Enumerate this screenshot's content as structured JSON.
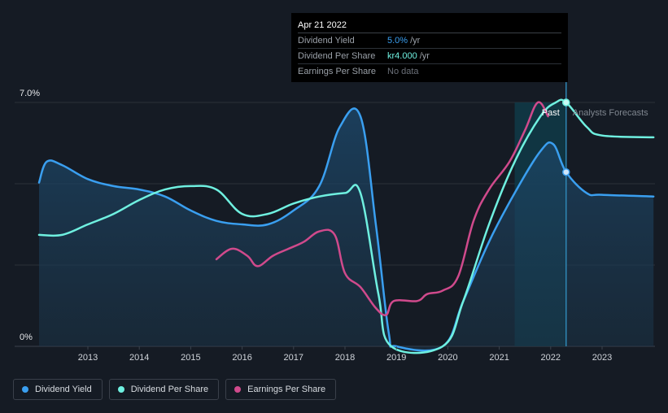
{
  "tooltip": {
    "date": "Apr 21 2022",
    "rows": [
      {
        "label": "Dividend Yield",
        "value": "5.0%",
        "unit": "/yr",
        "color": "#3a9ff0"
      },
      {
        "label": "Dividend Per Share",
        "value": "kr4.000",
        "unit": "/yr",
        "color": "#6ff0e0"
      },
      {
        "label": "Earnings Per Share",
        "value": "No data",
        "unit": "",
        "color": "#6b7079"
      }
    ]
  },
  "markers": {
    "past": "Past",
    "forecast": "Analysts Forecasts"
  },
  "legend": [
    {
      "label": "Dividend Yield",
      "color": "#3a9ff0"
    },
    {
      "label": "Dividend Per Share",
      "color": "#6ff0e0"
    },
    {
      "label": "Earnings Per Share",
      "color": "#d04a8c"
    }
  ],
  "chart_data": {
    "type": "line",
    "x_ticks": [
      "2013",
      "2014",
      "2015",
      "2016",
      "2017",
      "2018",
      "2019",
      "2020",
      "2021",
      "2022",
      "2023"
    ],
    "y_labels": [
      "7.0%",
      "0%"
    ],
    "xlim": [
      2012.0,
      2024.0
    ],
    "ylim": [
      0,
      7.0
    ],
    "highlight_x": 2022.3,
    "forecast_band": [
      2021.3,
      2022.3
    ],
    "series": [
      {
        "name": "Dividend Yield",
        "color": "#3a9ff0",
        "filled": true,
        "points": [
          [
            2012.0,
            4.7
          ],
          [
            2012.2,
            5.3
          ],
          [
            2012.5,
            5.2
          ],
          [
            2013.0,
            4.8
          ],
          [
            2013.5,
            4.6
          ],
          [
            2014.0,
            4.5
          ],
          [
            2014.5,
            4.3
          ],
          [
            2015.0,
            3.9
          ],
          [
            2015.5,
            3.6
          ],
          [
            2016.0,
            3.5
          ],
          [
            2016.5,
            3.5
          ],
          [
            2017.0,
            3.9
          ],
          [
            2017.5,
            4.6
          ],
          [
            2017.9,
            6.3
          ],
          [
            2018.3,
            6.6
          ],
          [
            2018.6,
            3.5
          ],
          [
            2018.85,
            0.4
          ],
          [
            2019.0,
            0.0
          ],
          [
            2019.9,
            0.0
          ],
          [
            2020.3,
            1.3
          ],
          [
            2020.8,
            3.0
          ],
          [
            2021.3,
            4.4
          ],
          [
            2021.8,
            5.6
          ],
          [
            2022.05,
            5.8
          ],
          [
            2022.3,
            5.0
          ],
          [
            2022.7,
            4.4
          ],
          [
            2023.0,
            4.35
          ],
          [
            2024.0,
            4.3
          ]
        ]
      },
      {
        "name": "Dividend Per Share",
        "color": "#6ff0e0",
        "filled": false,
        "points": [
          [
            2012.0,
            3.2
          ],
          [
            2012.5,
            3.2
          ],
          [
            2013.0,
            3.5
          ],
          [
            2013.5,
            3.8
          ],
          [
            2014.0,
            4.2
          ],
          [
            2014.5,
            4.5
          ],
          [
            2015.0,
            4.6
          ],
          [
            2015.5,
            4.5
          ],
          [
            2016.0,
            3.8
          ],
          [
            2016.5,
            3.8
          ],
          [
            2017.0,
            4.1
          ],
          [
            2017.5,
            4.3
          ],
          [
            2018.0,
            4.4
          ],
          [
            2018.3,
            4.4
          ],
          [
            2018.65,
            1.5
          ],
          [
            2018.9,
            0.0
          ],
          [
            2019.9,
            0.0
          ],
          [
            2020.3,
            1.3
          ],
          [
            2020.8,
            3.5
          ],
          [
            2021.3,
            5.3
          ],
          [
            2021.8,
            6.6
          ],
          [
            2022.1,
            7.0
          ],
          [
            2022.3,
            7.0
          ],
          [
            2022.7,
            6.3
          ],
          [
            2023.0,
            6.05
          ],
          [
            2024.0,
            6.0
          ]
        ]
      },
      {
        "name": "Earnings Per Share",
        "color": "#d04a8c",
        "filled": false,
        "points": [
          [
            2015.5,
            2.5
          ],
          [
            2015.8,
            2.8
          ],
          [
            2016.1,
            2.6
          ],
          [
            2016.3,
            2.3
          ],
          [
            2016.6,
            2.6
          ],
          [
            2016.9,
            2.8
          ],
          [
            2017.2,
            3.0
          ],
          [
            2017.5,
            3.3
          ],
          [
            2017.8,
            3.2
          ],
          [
            2018.0,
            2.1
          ],
          [
            2018.3,
            1.7
          ],
          [
            2018.6,
            1.1
          ],
          [
            2018.8,
            0.9
          ],
          [
            2018.95,
            1.3
          ],
          [
            2019.4,
            1.3
          ],
          [
            2019.6,
            1.5
          ],
          [
            2019.9,
            1.6
          ],
          [
            2020.2,
            2.0
          ],
          [
            2020.5,
            3.6
          ],
          [
            2020.8,
            4.5
          ],
          [
            2021.2,
            5.3
          ],
          [
            2021.5,
            6.2
          ],
          [
            2021.75,
            7.0
          ],
          [
            2021.95,
            6.6
          ]
        ]
      }
    ]
  }
}
